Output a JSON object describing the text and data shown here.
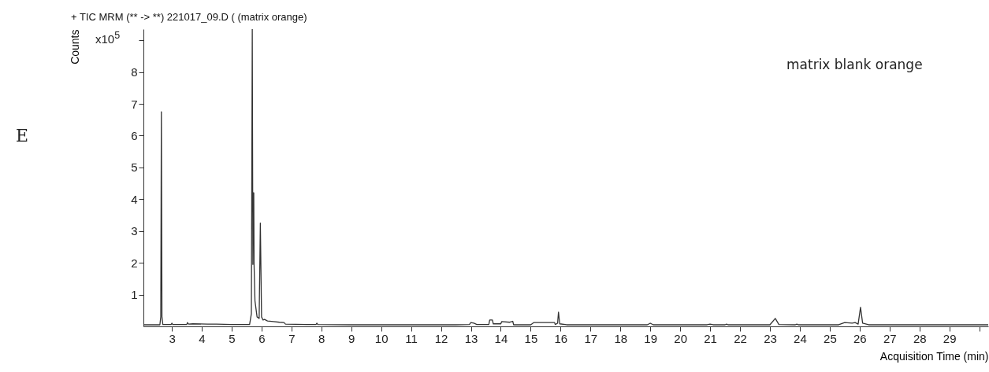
{
  "chart_data": {
    "type": "line",
    "title": "+ TIC MRM (** -> **) 221017_09.D (   (matrix orange)",
    "xlabel": "Acquisition Time (min)",
    "ylabel": "Counts",
    "annotations": [
      "E",
      "x10$^{5}$",
      "matrix blank orange"
    ],
    "series": [
      {
        "color": "#333333",
        "x": [
          2.05,
          2.6,
          2.63,
          2.65,
          2.67,
          2.7,
          2.98,
          3.0,
          3.03,
          3.5,
          3.52,
          3.56,
          3.7,
          4.2,
          4.5,
          5.0,
          5.3,
          5.6,
          5.66,
          5.69,
          5.71,
          5.72,
          5.74,
          5.75,
          5.78,
          5.85,
          5.92,
          5.96,
          6.0,
          6.05,
          6.1,
          6.2,
          6.4,
          6.6,
          6.75,
          6.8,
          7.5,
          7.82,
          7.85,
          7.88,
          9.0,
          11.0,
          12.5,
          12.95,
          13.0,
          13.1,
          13.2,
          13.6,
          13.63,
          13.72,
          13.75,
          14.0,
          14.03,
          14.3,
          14.4,
          14.43,
          15.0,
          15.1,
          15.8,
          15.82,
          15.9,
          15.93,
          15.97,
          16.2,
          17.0,
          18.9,
          19.0,
          19.1,
          20.9,
          21.0,
          21.1,
          21.5,
          21.55,
          21.6,
          23.0,
          23.18,
          23.3,
          23.85,
          23.9,
          23.95,
          25.3,
          25.5,
          25.75,
          25.85,
          25.95,
          26.03,
          26.1,
          26.3,
          30.3
        ],
        "values": [
          0.05,
          0.05,
          0.3,
          6.75,
          0.3,
          0.06,
          0.06,
          0.1,
          0.06,
          0.06,
          0.12,
          0.07,
          0.08,
          0.07,
          0.07,
          0.06,
          0.06,
          0.06,
          0.4,
          9.35,
          1.95,
          4.2,
          4.2,
          1.95,
          0.8,
          0.3,
          0.25,
          3.25,
          0.3,
          0.2,
          0.22,
          0.17,
          0.15,
          0.13,
          0.12,
          0.07,
          0.06,
          0.06,
          0.1,
          0.06,
          0.05,
          0.05,
          0.05,
          0.06,
          0.12,
          0.1,
          0.06,
          0.06,
          0.2,
          0.2,
          0.08,
          0.08,
          0.15,
          0.13,
          0.16,
          0.05,
          0.05,
          0.12,
          0.12,
          0.06,
          0.1,
          0.45,
          0.08,
          0.05,
          0.05,
          0.05,
          0.1,
          0.05,
          0.05,
          0.07,
          0.05,
          0.05,
          0.07,
          0.05,
          0.05,
          0.25,
          0.06,
          0.05,
          0.07,
          0.05,
          0.05,
          0.12,
          0.1,
          0.12,
          0.07,
          0.6,
          0.1,
          0.05,
          0.05
        ]
      }
    ],
    "xlim": [
      2.05,
      30.3
    ],
    "ylim": [
      0,
      9.35
    ],
    "xticks": [
      3,
      4,
      5,
      6,
      7,
      8,
      9,
      10,
      11,
      12,
      13,
      14,
      15,
      16,
      17,
      18,
      19,
      20,
      21,
      22,
      23,
      24,
      25,
      26,
      27,
      28,
      29,
      {
        "value": 30,
        "label": null
      }
    ],
    "yticks": [
      1,
      2,
      3,
      4,
      5,
      6,
      7,
      8,
      {
        "value": 9,
        "label": null
      }
    ],
    "grid": false,
    "legend": false
  }
}
